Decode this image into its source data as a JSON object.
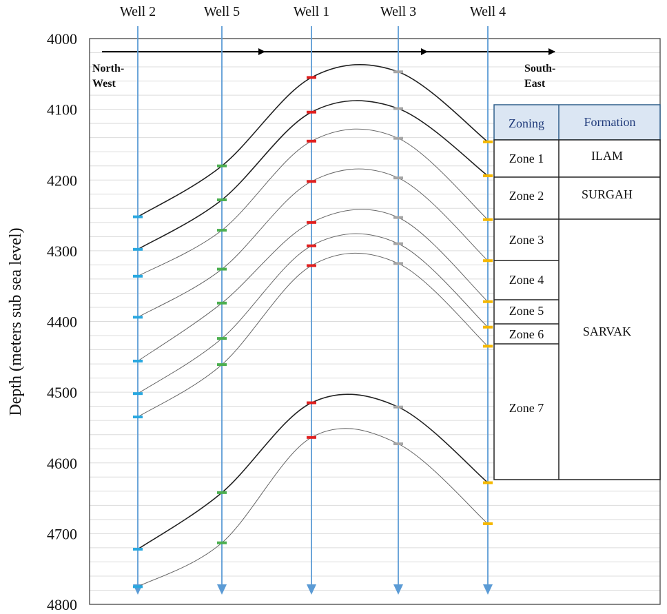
{
  "chart_data": {
    "type": "line",
    "title": "",
    "ylabel": "Depth (meters sub sea level)",
    "ylim": [
      4000,
      4800
    ],
    "y_inverted": true,
    "yticks": [
      4000,
      4100,
      4200,
      4300,
      4400,
      4500,
      4600,
      4700,
      4800
    ],
    "grid": true,
    "wells": [
      "Well 2",
      "Well 5",
      "Well 1",
      "Well 3",
      "Well 4"
    ],
    "well_marker_colors": {
      "Well 2": "#29a8e0",
      "Well 5": "#4caf50",
      "Well 1": "#e02020",
      "Well 3": "#a6a6a6",
      "Well 4": "#f5b800"
    },
    "well_line_color": "#5b9bd5",
    "direction": {
      "start": "North-West",
      "end": "South-East"
    },
    "series": [
      {
        "values": [
          4252,
          4180,
          4055,
          4047,
          4146
        ],
        "style": "dark"
      },
      {
        "values": [
          4298,
          4228,
          4104,
          4099,
          4194
        ],
        "style": "dark"
      },
      {
        "values": [
          4336,
          4271,
          4145,
          4141,
          4256
        ],
        "style": "light"
      },
      {
        "values": [
          4394,
          4326,
          4202,
          4197,
          4314
        ],
        "style": "light"
      },
      {
        "values": [
          4456,
          4374,
          4260,
          4253,
          4372
        ],
        "style": "light"
      },
      {
        "values": [
          4502,
          4424,
          4293,
          4290,
          4408
        ],
        "style": "light"
      },
      {
        "values": [
          4535,
          4461,
          4321,
          4318,
          4435
        ],
        "style": "light"
      },
      {
        "values": [
          4722,
          4642,
          4515,
          4521,
          4628
        ],
        "style": "dark"
      },
      {
        "values": [
          4775,
          4713,
          4564,
          4573,
          4686
        ],
        "style": "light"
      }
    ],
    "zone_table": {
      "headers": [
        "Zoning",
        "Formation"
      ],
      "zones": [
        "Zone 1",
        "Zone 2",
        "Zone 3",
        "Zone 4",
        "Zone 5",
        "Zone 6",
        "Zone 7"
      ],
      "formations": [
        "ILAM",
        "SURGAH",
        "SARVAK"
      ]
    }
  }
}
